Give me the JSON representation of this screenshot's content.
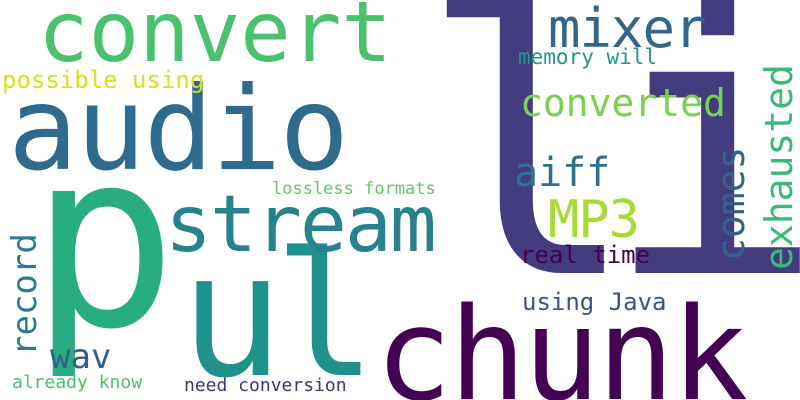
{
  "words": [
    {
      "text": "li",
      "color": "#433d7f"
    },
    {
      "text": "p",
      "color": "#27ad81"
    },
    {
      "text": "chunk",
      "color": "#440154"
    },
    {
      "text": "audio",
      "color": "#2f6b8e"
    },
    {
      "text": "ul",
      "color": "#21918c"
    },
    {
      "text": "convert",
      "color": "#4ac16d"
    },
    {
      "text": "stream",
      "color": "#26828e"
    },
    {
      "text": "mixer",
      "color": "#31678e"
    },
    {
      "text": "MP3",
      "color": "#a5db36"
    },
    {
      "text": "converted",
      "color": "#7ad151"
    },
    {
      "text": "exhausted",
      "color": "#3aba76"
    },
    {
      "text": "comes",
      "color": "#33638d"
    },
    {
      "text": "aiff",
      "color": "#2c728e"
    },
    {
      "text": "record",
      "color": "#287d8e"
    },
    {
      "text": "wav",
      "color": "#35608d"
    },
    {
      "text": "possible using",
      "color": "#d8e219"
    },
    {
      "text": "using Java",
      "color": "#3b528b"
    },
    {
      "text": "real time",
      "color": "#440154"
    },
    {
      "text": "memory will",
      "color": "#1f9a8a"
    },
    {
      "text": "lossless formats",
      "color": "#5ec962"
    },
    {
      "text": "already know",
      "color": "#4ac16d"
    },
    {
      "text": "need conversion",
      "color": "#46327e"
    }
  ]
}
